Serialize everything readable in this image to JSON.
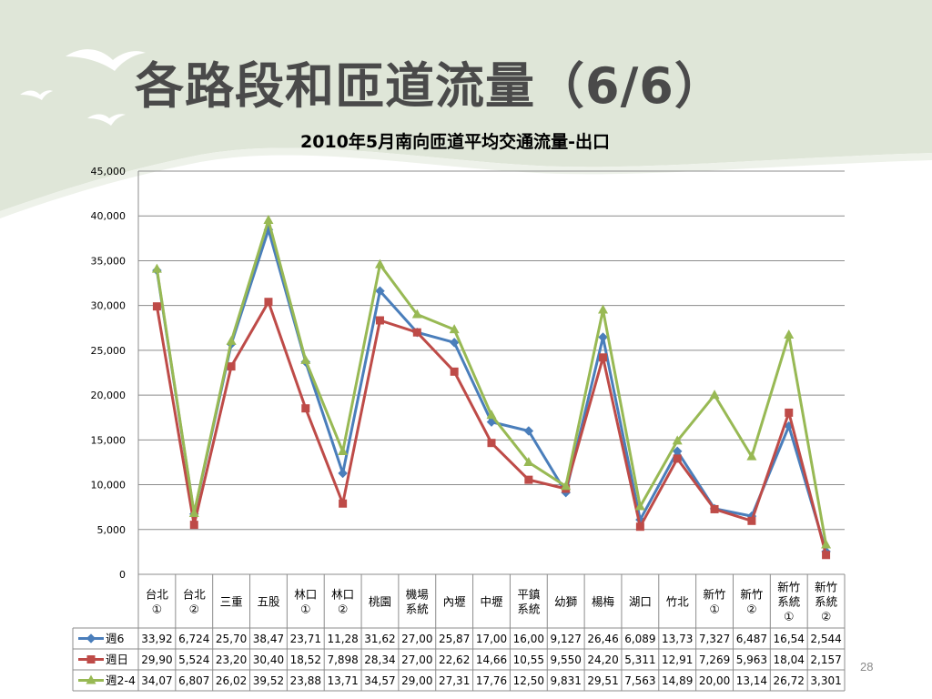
{
  "slide": {
    "title": "各路段和匝道流量（6/6）",
    "page_number": "28"
  },
  "colors": {
    "background_band": "#dfe6d8",
    "title_text": "#4a4a4a",
    "series_weekday6": "#4a7ebb",
    "series_sunday": "#be4b48",
    "series_weekday24": "#98b954",
    "gridline": "#8c8c8c"
  },
  "decor": {
    "birds": [
      "bird-icon",
      "bird-icon",
      "bird-icon"
    ]
  },
  "chart_data": {
    "type": "line",
    "title": "2010年5月南向匝道平均交通流量-出口",
    "xlabel": "",
    "ylabel": "",
    "ylim": [
      0,
      45000
    ],
    "ytick_labels": [
      "0",
      "5,000",
      "10,000",
      "15,000",
      "20,000",
      "25,000",
      "30,000",
      "35,000",
      "40,000",
      "45,000"
    ],
    "grid": true,
    "legend": "data-table",
    "categories": [
      [
        "台北",
        "①"
      ],
      [
        "台北",
        "②"
      ],
      [
        "三重"
      ],
      [
        "五股"
      ],
      [
        "林口",
        "①"
      ],
      [
        "林口",
        "②"
      ],
      [
        "桃園"
      ],
      [
        "機場",
        "系統"
      ],
      [
        "內壢"
      ],
      [
        "中壢"
      ],
      [
        "平鎮",
        "系統"
      ],
      [
        "幼獅"
      ],
      [
        "楊梅"
      ],
      [
        "湖口"
      ],
      [
        "竹北"
      ],
      [
        "新竹",
        "①"
      ],
      [
        "新竹",
        "②"
      ],
      [
        "新竹",
        "系統",
        "①"
      ],
      [
        "新竹",
        "系統",
        "②"
      ]
    ],
    "series": [
      {
        "name": "週6",
        "marker": "diamond",
        "color": "#4a7ebb",
        "values": [
          33920,
          6724,
          25700,
          38470,
          23710,
          11280,
          31620,
          27000,
          25870,
          17000,
          16000,
          9127,
          26460,
          6089,
          13730,
          7327,
          6487,
          16540,
          2544
        ],
        "table_labels": [
          "33,92",
          "6,724",
          "25,70",
          "38,47",
          "23,71",
          "11,28",
          "31,62",
          "27,00",
          "25,87",
          "17,00",
          "16,00",
          "9,127",
          "26,46",
          "6,089",
          "13,73",
          "7,327",
          "6,487",
          "16,54",
          "2,544"
        ]
      },
      {
        "name": "週日",
        "marker": "square",
        "color": "#be4b48",
        "values": [
          29900,
          5524,
          23200,
          30400,
          18520,
          7898,
          28340,
          27000,
          22620,
          14660,
          10550,
          9550,
          24200,
          5311,
          12910,
          7269,
          5963,
          18040,
          2157
        ],
        "table_labels": [
          "29,90",
          "5,524",
          "23,20",
          "30,40",
          "18,52",
          "7,898",
          "28,34",
          "27,00",
          "22,62",
          "14,66",
          "10,55",
          "9,550",
          "24,20",
          "5,311",
          "12,91",
          "7,269",
          "5,963",
          "18,04",
          "2,157"
        ]
      },
      {
        "name": "週2-4",
        "marker": "triangle",
        "color": "#98b954",
        "values": [
          34070,
          6807,
          26020,
          39520,
          23880,
          13710,
          34570,
          29000,
          27310,
          17760,
          12500,
          9831,
          29510,
          7563,
          14890,
          20000,
          13140,
          26720,
          3301
        ],
        "table_labels": [
          "34,07",
          "6,807",
          "26,02",
          "39,52",
          "23,88",
          "13,71",
          "34,57",
          "29,00",
          "27,31",
          "17,76",
          "12,50",
          "9,831",
          "29,51",
          "7,563",
          "14,89",
          "20,00",
          "13,14",
          "26,72",
          "3,301"
        ]
      }
    ]
  }
}
